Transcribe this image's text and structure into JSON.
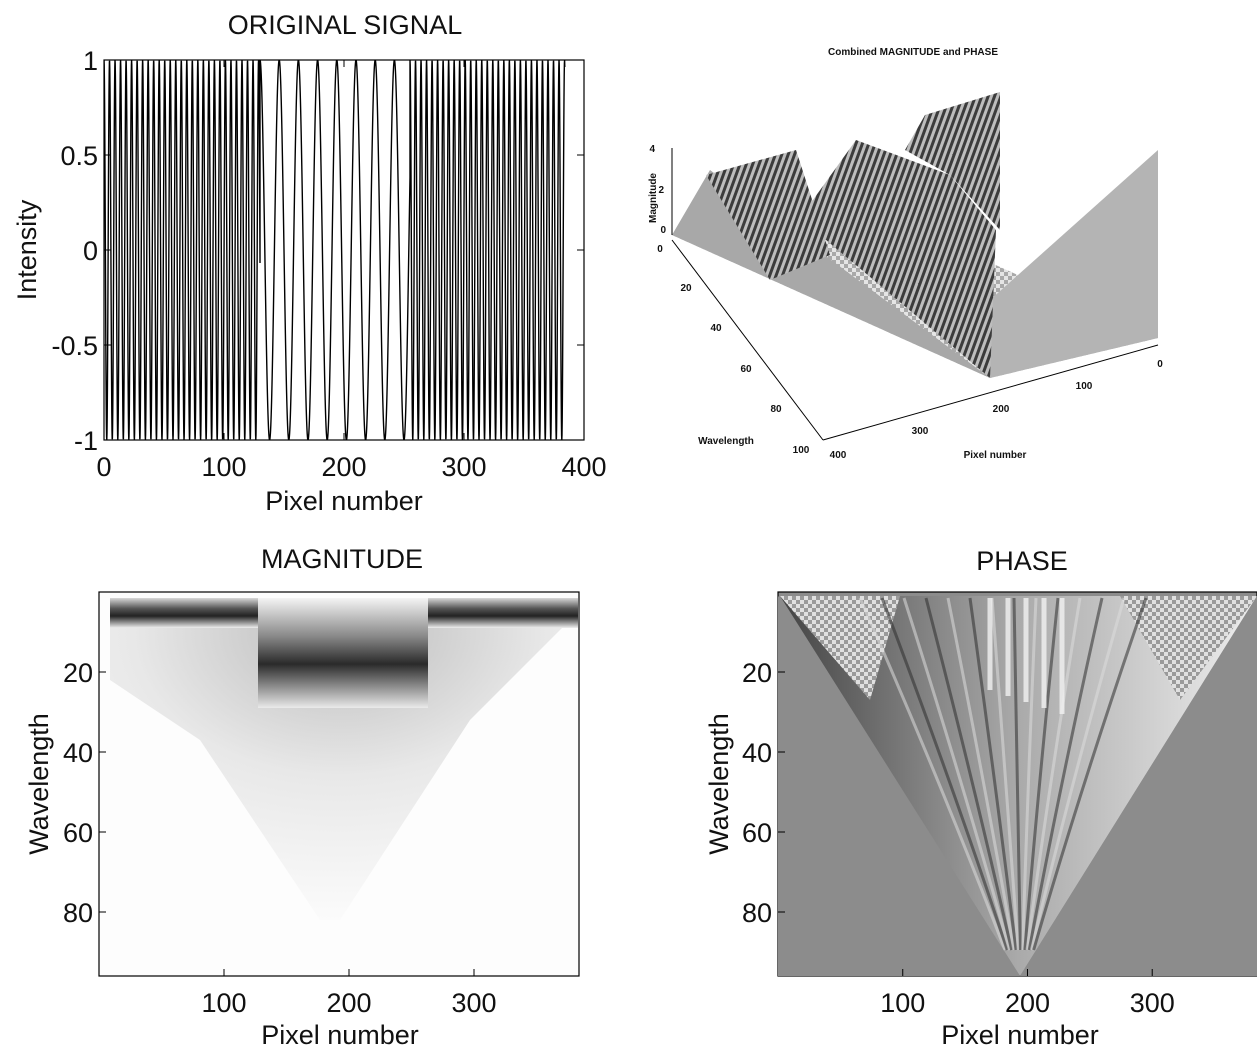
{
  "chart_data": [
    {
      "id": "original_signal",
      "type": "line",
      "title": "ORIGINAL SIGNAL",
      "xlabel": "Pixel number",
      "ylabel": "Intensity",
      "xlim": [
        0,
        400
      ],
      "ylim": [
        -1,
        1
      ],
      "xticks": [
        "0",
        "100",
        "200",
        "300",
        "400"
      ],
      "yticks": [
        "1",
        "0.5",
        "0",
        "-0.5",
        "-1"
      ],
      "segments": [
        {
          "x_start": 0,
          "x_end": 130,
          "period": 4.6
        },
        {
          "x_start": 130,
          "x_end": 255,
          "period": 16
        },
        {
          "x_start": 255,
          "x_end": 384,
          "period": 4.6
        }
      ],
      "grid": false
    },
    {
      "id": "combined",
      "type": "surface",
      "title": "Combined MAGNITUDE and PHASE",
      "xlabel": "Pixel number",
      "ylabel": "Wavelength",
      "zlabel": "Magnitude",
      "xticks": [
        "0",
        "100",
        "200",
        "300",
        "400"
      ],
      "yticks": [
        "0",
        "20",
        "40",
        "60",
        "80",
        "100"
      ],
      "zticks": [
        "4",
        "2",
        "0"
      ]
    },
    {
      "id": "magnitude",
      "type": "heatmap",
      "title": "MAGNITUDE",
      "xlabel": "Pixel number",
      "ylabel": "Wavelength",
      "xlim": [
        0,
        384
      ],
      "ylim": [
        0,
        96
      ],
      "xticks": [
        "100",
        "200",
        "300"
      ],
      "yticks": [
        "20",
        "40",
        "60",
        "80"
      ],
      "colormap": "gray"
    },
    {
      "id": "phase",
      "type": "heatmap",
      "title": "PHASE",
      "xlabel": "Pixel number",
      "ylabel": "Wavelength",
      "xlim": [
        0,
        384
      ],
      "ylim": [
        0,
        96
      ],
      "xticks": [
        "100",
        "200",
        "300"
      ],
      "yticks": [
        "20",
        "40",
        "60",
        "80"
      ],
      "colormap": "gray"
    }
  ]
}
